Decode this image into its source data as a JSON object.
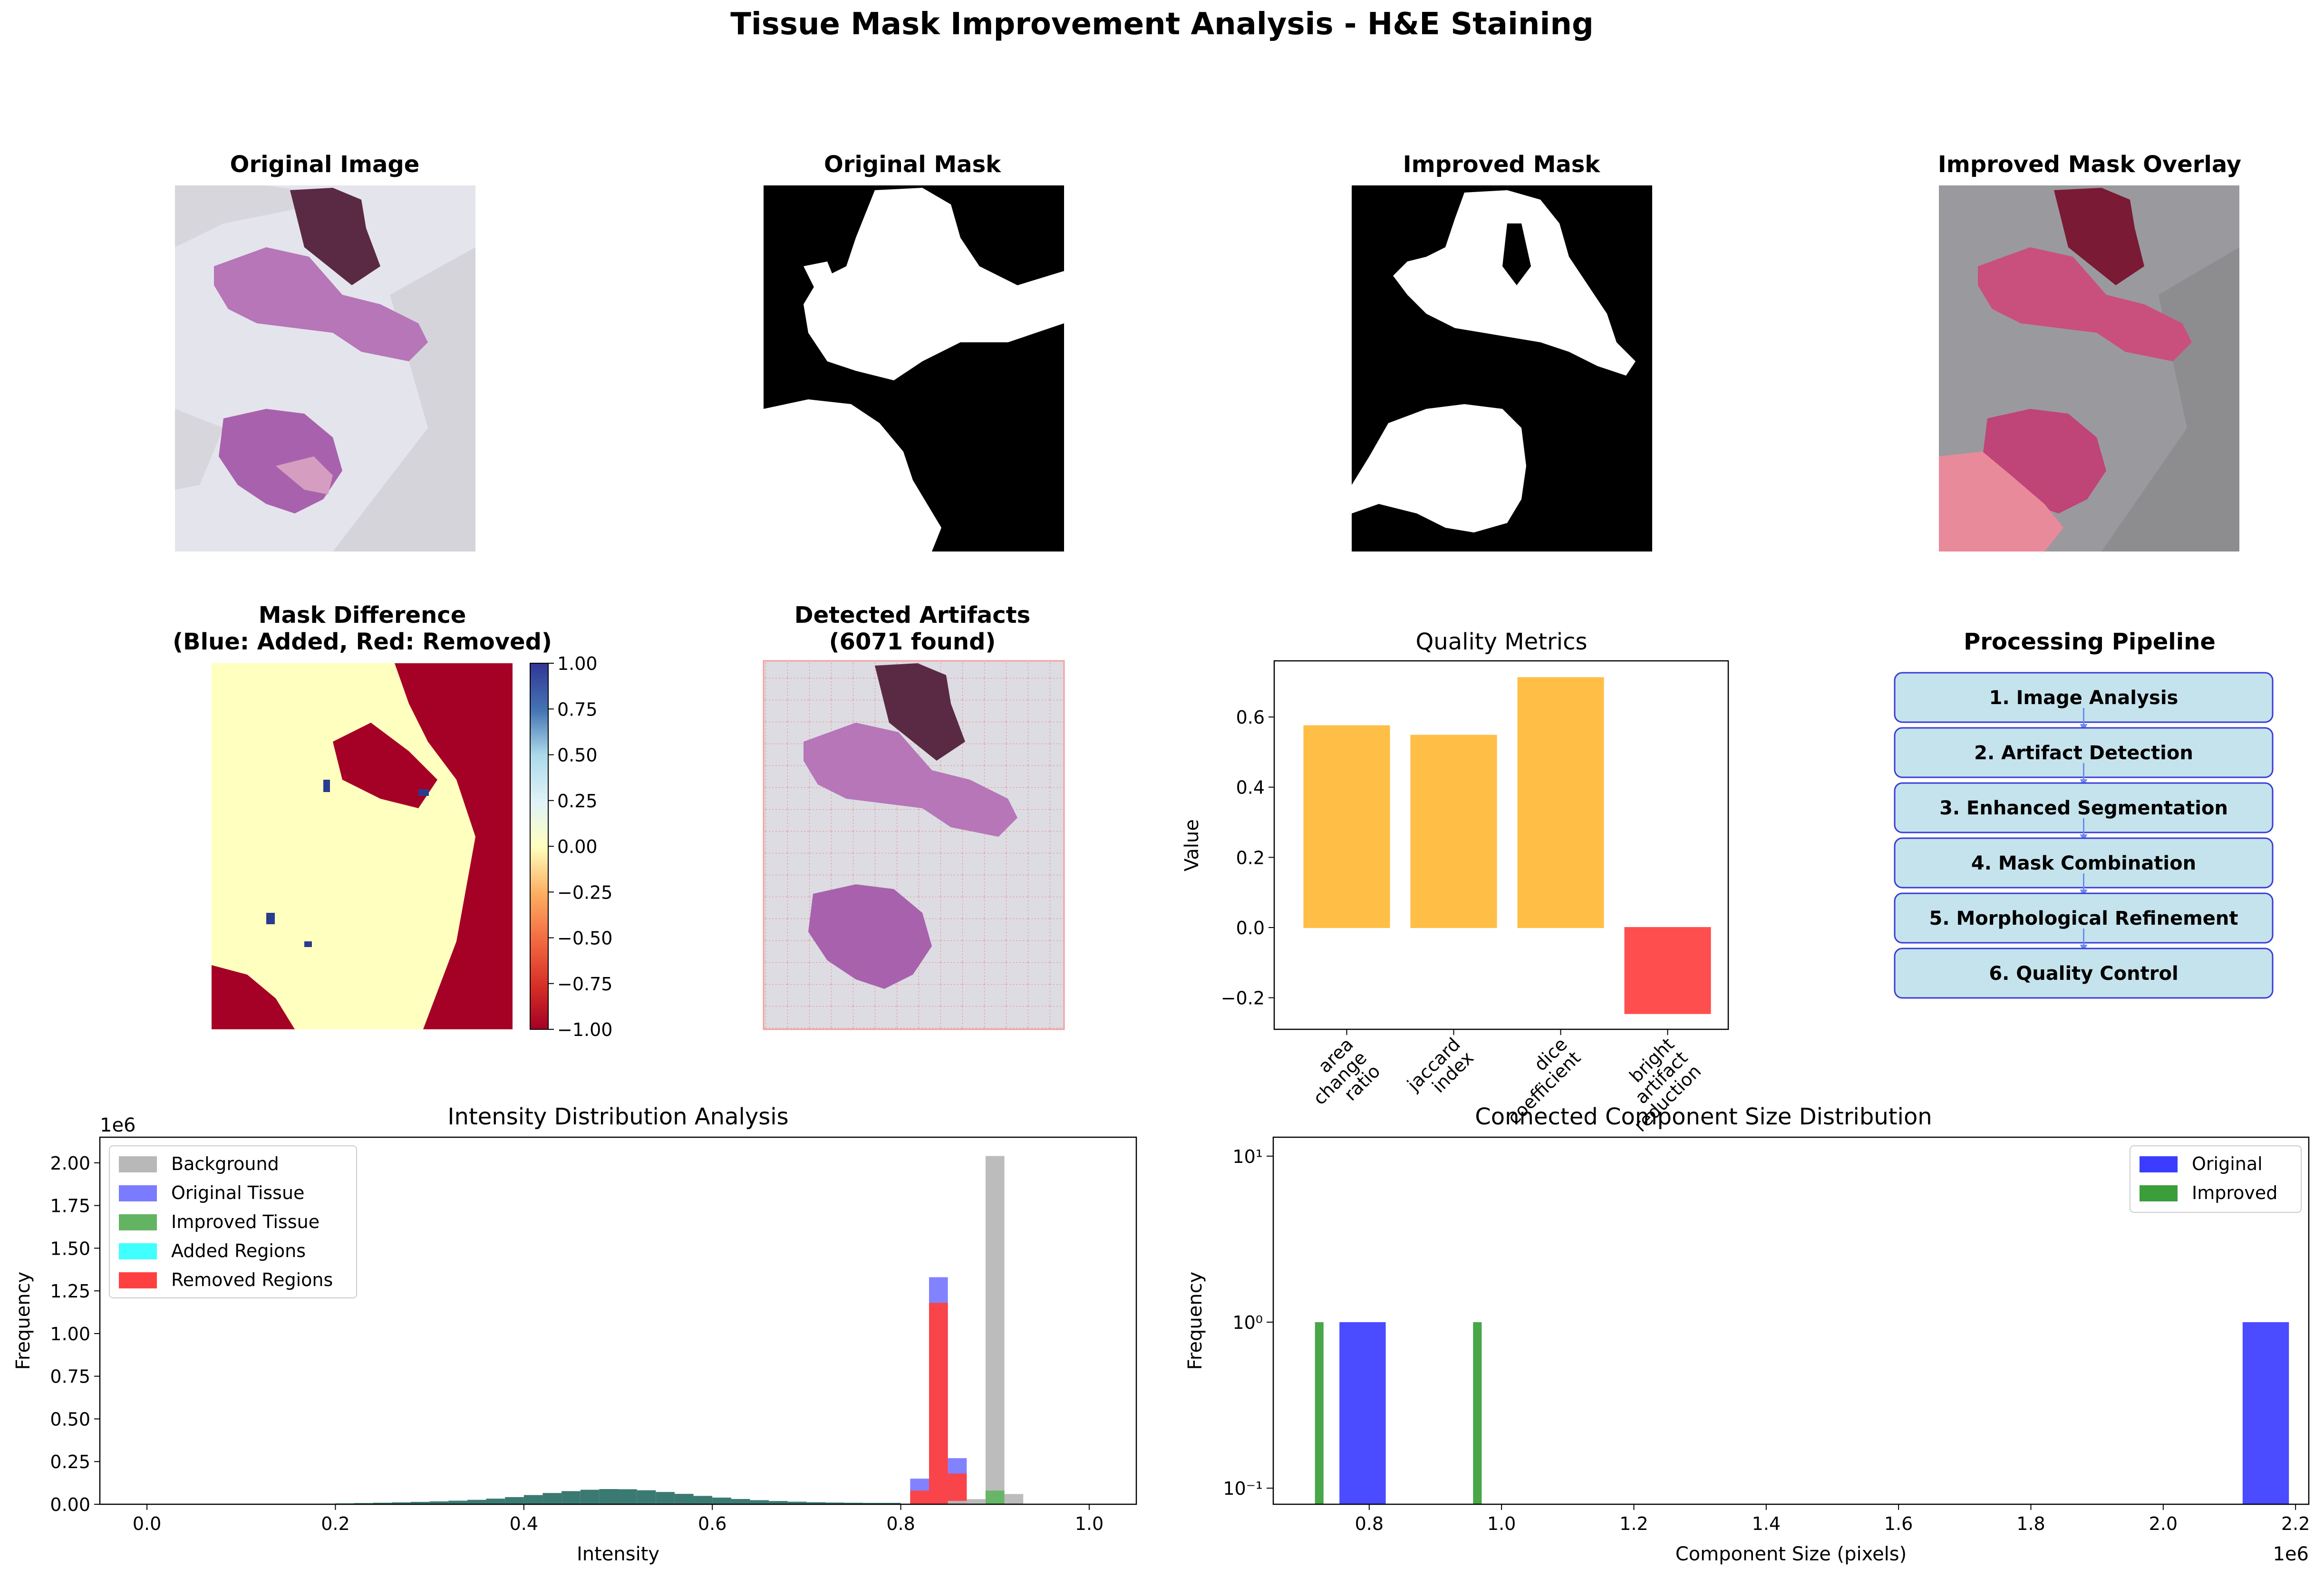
{
  "figure": {
    "title": "Tissue Mask Improvement Analysis - H&E Staining"
  },
  "panels": {
    "original_image": {
      "title": "Original Image"
    },
    "original_mask": {
      "title": "Original Mask"
    },
    "improved_mask": {
      "title": "Improved Mask"
    },
    "overlay": {
      "title": "Improved Mask Overlay"
    },
    "mask_difference": {
      "title_line1": "Mask Difference",
      "title_line2": "(Blue: Added, Red: Removed)",
      "colorbar_ticks": [
        "1.00",
        "0.75",
        "0.50",
        "0.25",
        "0.00",
        "−0.25",
        "−0.50",
        "−0.75",
        "−1.00"
      ]
    },
    "artifacts": {
      "title_line1": "Detected Artifacts",
      "title_line2": "(6071 found)"
    },
    "pipeline": {
      "title": "Processing Pipeline",
      "steps": [
        "1. Image Analysis",
        "2. Artifact Detection",
        "3. Enhanced Segmentation",
        "4. Mask Combination",
        "5. Morphological Refinement",
        "6. Quality Control"
      ]
    }
  },
  "colors": {
    "orange": "#ffb732",
    "red": "#ff3b3b",
    "pipeline_fill": "#c5e3ec",
    "pipeline_edge": "#3a3ad6",
    "background_gray": "#b8b8b8",
    "original_blue": "#7b7bff",
    "improved_green": "#62b462",
    "added_cyan": "#40ffff",
    "removed_red": "#ff4040",
    "teal_overlap": "#3b7a72",
    "comp_blue": "#3c3cff",
    "comp_green": "#3a9e3a"
  },
  "chart_data": [
    {
      "type": "bar",
      "title": "Quality Metrics",
      "ylabel": "Value",
      "categories": [
        "area\nchange\nratio",
        "jaccard\nindex",
        "dice\ncoefficient",
        "bright\nartifact\nreduction"
      ],
      "values": [
        0.575,
        0.548,
        0.712,
        -0.245
      ],
      "colors": [
        "orange",
        "orange",
        "orange",
        "red"
      ],
      "ylim": [
        -0.29,
        0.76
      ],
      "yticks": [
        "−0.2",
        "0.0",
        "0.2",
        "0.4",
        "0.6"
      ]
    },
    {
      "type": "bar",
      "title": "Intensity Distribution Analysis",
      "xlabel": "Intensity",
      "ylabel": "Frequency",
      "y_multiplier": "1e6",
      "xlim": [
        -0.05,
        1.05
      ],
      "ylim": [
        0,
        2.15
      ],
      "xticks": [
        "0.0",
        "0.2",
        "0.4",
        "0.6",
        "0.8",
        "1.0"
      ],
      "yticks": [
        "0.00",
        "0.25",
        "0.50",
        "0.75",
        "1.00",
        "1.25",
        "1.50",
        "1.75",
        "2.00"
      ],
      "legend": [
        "Background",
        "Original Tissue",
        "Improved Tissue",
        "Added Regions",
        "Removed Regions"
      ],
      "legend_position": "upper-left",
      "tissue_distribution": {
        "x": [
          0.15,
          0.17,
          0.19,
          0.21,
          0.23,
          0.25,
          0.27,
          0.29,
          0.31,
          0.33,
          0.35,
          0.37,
          0.39,
          0.41,
          0.43,
          0.45,
          0.47,
          0.49,
          0.51,
          0.53,
          0.55,
          0.57,
          0.59,
          0.61,
          0.63,
          0.65,
          0.67,
          0.69,
          0.71,
          0.73,
          0.75,
          0.77,
          0.79
        ],
        "values": [
          0.001,
          0.002,
          0.003,
          0.005,
          0.007,
          0.009,
          0.011,
          0.014,
          0.017,
          0.021,
          0.026,
          0.033,
          0.042,
          0.054,
          0.066,
          0.077,
          0.085,
          0.089,
          0.088,
          0.082,
          0.072,
          0.061,
          0.049,
          0.039,
          0.031,
          0.024,
          0.019,
          0.015,
          0.012,
          0.01,
          0.009,
          0.008,
          0.008
        ]
      },
      "peaks": [
        {
          "series": "Original Tissue",
          "x": [
            0.82,
            0.84,
            0.86
          ],
          "values": [
            0.15,
            1.33,
            0.27
          ]
        },
        {
          "series": "Removed Regions",
          "x": [
            0.82,
            0.84,
            0.86
          ],
          "values": [
            0.08,
            1.18,
            0.18
          ]
        },
        {
          "series": "Background",
          "x": [
            0.86,
            0.88,
            0.9,
            0.92
          ],
          "values": [
            0.02,
            0.03,
            2.04,
            0.06
          ]
        },
        {
          "series": "Improved Tissue",
          "x": [
            0.9
          ],
          "values": [
            0.08
          ]
        }
      ]
    },
    {
      "type": "bar",
      "title": "Connected Component Size Distribution",
      "xlabel": "Component Size (pixels)",
      "ylabel": "Frequency",
      "x_multiplier": "1e6",
      "yscale": "log",
      "xlim": [
        0.655,
        2.22
      ],
      "xticks": [
        "0.8",
        "1.0",
        "1.2",
        "1.4",
        "1.6",
        "1.8",
        "2.0",
        "2.2"
      ],
      "yticks": [
        "10⁻¹",
        "10⁰",
        "10¹"
      ],
      "legend": [
        "Original",
        "Improved"
      ],
      "legend_position": "upper-right",
      "series": [
        {
          "name": "Original",
          "bars": [
            {
              "x0": 0.755,
              "x1": 0.825,
              "value": 1
            },
            {
              "x0": 2.12,
              "x1": 2.19,
              "value": 1
            }
          ]
        },
        {
          "name": "Improved",
          "bars": [
            {
              "x0": 0.718,
              "x1": 0.731,
              "value": 1
            },
            {
              "x0": 0.957,
              "x1": 0.97,
              "value": 1
            }
          ]
        }
      ]
    }
  ]
}
